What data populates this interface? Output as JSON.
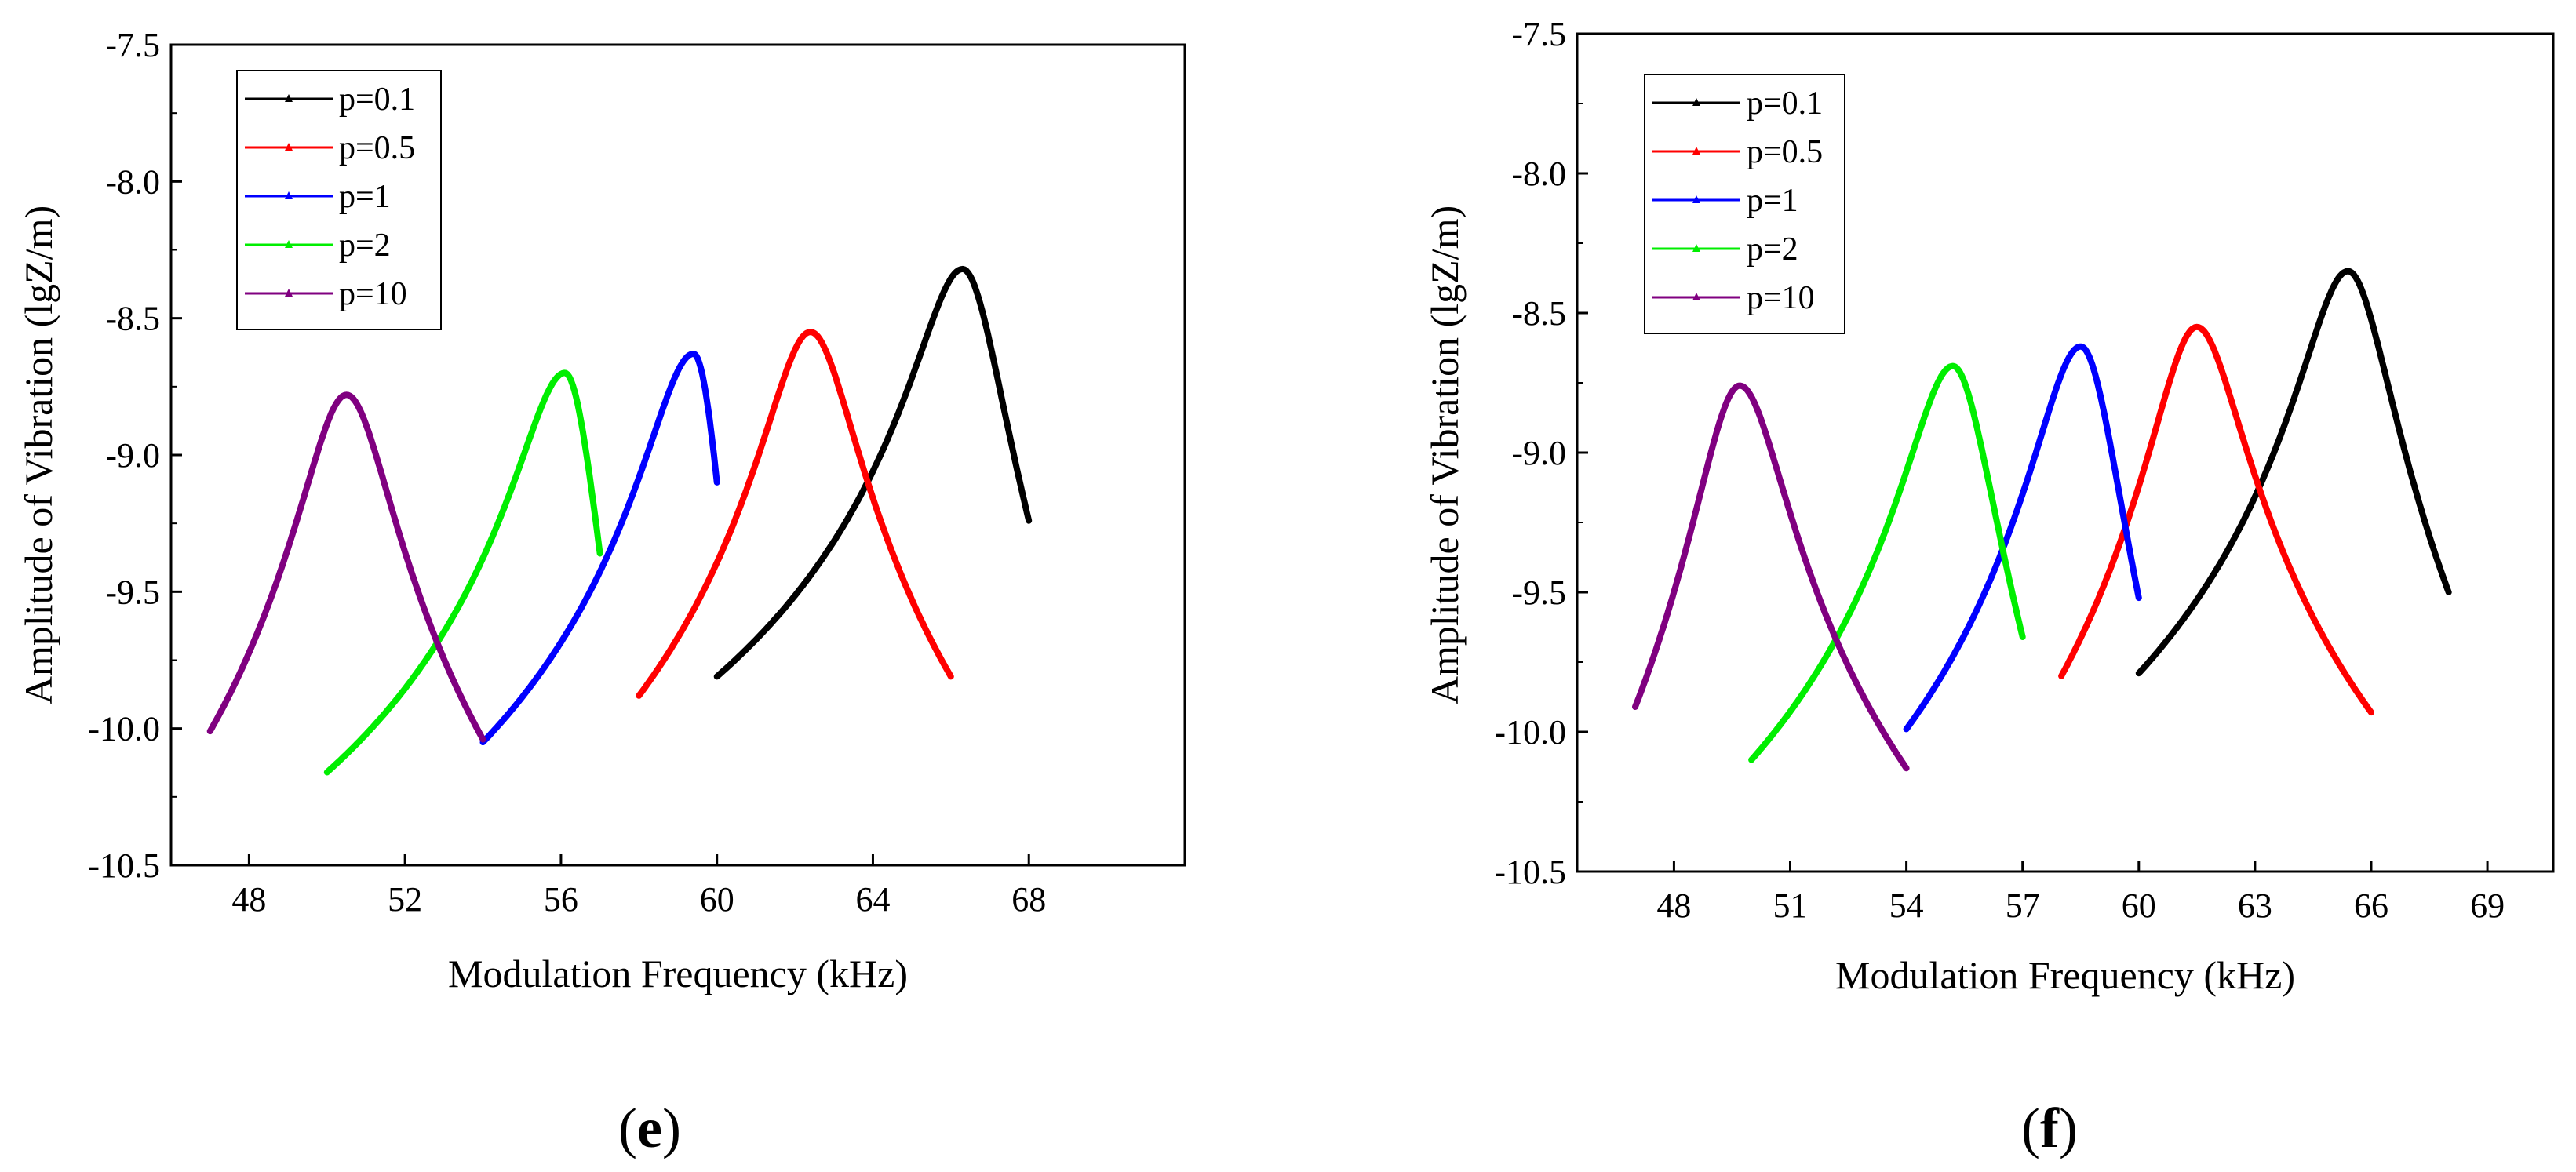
{
  "figure": {
    "panels": [
      {
        "caption_open": "(",
        "caption_letter": "e",
        "caption_close": ")"
      },
      {
        "caption_open": "(",
        "caption_letter": "f",
        "caption_close": ")"
      }
    ]
  },
  "chart_data": [
    {
      "type": "line",
      "panel": "e",
      "title": "",
      "xlabel": "Modulation Frequency (kHz)",
      "ylabel": "Amplitude of Vibration (lgZ/m)",
      "xlim": [
        46,
        72
      ],
      "ylim": [
        -10.5,
        -7.5
      ],
      "xticks": [
        48,
        52,
        56,
        60,
        64,
        68
      ],
      "yticks": [
        -10.5,
        -10.0,
        -9.5,
        -9.0,
        -8.5,
        -8.0,
        -7.5
      ],
      "ytick_labels": [
        "-10.5",
        "-10.0",
        "-9.5",
        "-9.0",
        "-8.5",
        "-8.0",
        "-7.5"
      ],
      "grid": false,
      "legend_position": "top-left",
      "series": [
        {
          "name": "p=0.1",
          "color": "#000000",
          "x_start": 60,
          "x_end": 68,
          "peak_x": 66.3,
          "peak_y": -8.32,
          "start_y": -9.81,
          "end_y": -9.24
        },
        {
          "name": "p=0.5",
          "color": "#ff0000",
          "x_start": 58,
          "x_end": 66,
          "peak_x": 62.4,
          "peak_y": -8.55,
          "start_y": -9.88,
          "end_y": -9.81
        },
        {
          "name": "p=1",
          "color": "#0000ff",
          "x_start": 54,
          "x_end": 60,
          "peak_x": 59.4,
          "peak_y": -8.63,
          "start_y": -10.05,
          "end_y": -9.1
        },
        {
          "name": "p=2",
          "color": "#00ee00",
          "x_start": 50,
          "x_end": 57,
          "peak_x": 56.1,
          "peak_y": -8.7,
          "start_y": -10.16,
          "end_y": -9.36
        },
        {
          "name": "p=10",
          "color": "#800080",
          "x_start": 47,
          "x_end": 54,
          "peak_x": 50.5,
          "peak_y": -8.78,
          "start_y": -10.01,
          "end_y": -10.04
        }
      ]
    },
    {
      "type": "line",
      "panel": "f",
      "title": "",
      "xlabel": "Modulation Frequency (kHz)",
      "ylabel": "Amplitude of Vibration (lgZ/m)",
      "xlim": [
        45.5,
        70.7
      ],
      "ylim": [
        -10.5,
        -7.5
      ],
      "xticks": [
        48,
        51,
        54,
        57,
        60,
        63,
        66,
        69
      ],
      "yticks": [
        -10.5,
        -10.0,
        -9.5,
        -9.0,
        -8.5,
        -8.0,
        -7.5
      ],
      "ytick_labels": [
        "-10.5",
        "-10.0",
        "-9.5",
        "-9.0",
        "-8.5",
        "-8.0",
        "-7.5"
      ],
      "grid": false,
      "legend_position": "top-left",
      "series": [
        {
          "name": "p=0.1",
          "color": "#000000",
          "x_start": 60,
          "x_end": 68,
          "peak_x": 65.4,
          "peak_y": -8.35,
          "start_y": -9.79,
          "end_y": -9.5
        },
        {
          "name": "p=0.5",
          "color": "#ff0000",
          "x_start": 58,
          "x_end": 66,
          "peak_x": 61.5,
          "peak_y": -8.55,
          "start_y": -9.8,
          "end_y": -9.93
        },
        {
          "name": "p=1",
          "color": "#0000ff",
          "x_start": 54,
          "x_end": 60,
          "peak_x": 58.5,
          "peak_y": -8.62,
          "start_y": -9.99,
          "end_y": -9.52
        },
        {
          "name": "p=2",
          "color": "#00ee00",
          "x_start": 50,
          "x_end": 57,
          "peak_x": 55.2,
          "peak_y": -8.69,
          "start_y": -10.1,
          "end_y": -9.66
        },
        {
          "name": "p=10",
          "color": "#800080",
          "x_start": 47,
          "x_end": 54,
          "peak_x": 49.7,
          "peak_y": -8.76,
          "start_y": -9.91,
          "end_y": -10.13
        }
      ]
    }
  ]
}
